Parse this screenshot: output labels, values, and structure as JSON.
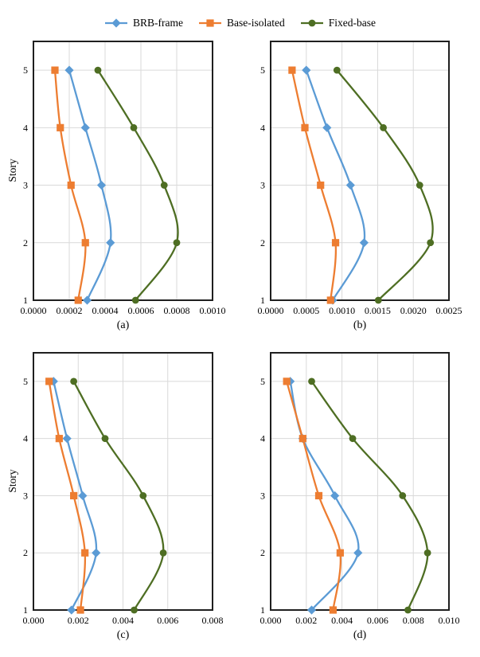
{
  "colors": {
    "brb_frame": "#5B9BD5",
    "base_isolated": "#ED7D31",
    "fixed_base": "#4E6E23",
    "grid": "#D9D9D9",
    "axis": "#1F1F1F",
    "background": "#FFFFFF"
  },
  "legend": {
    "items": [
      {
        "label": "BRB-frame",
        "marker": "diamond",
        "color": "#5B9BD5"
      },
      {
        "label": "Base-isolated",
        "marker": "square",
        "color": "#ED7D31"
      },
      {
        "label": "Fixed-base",
        "marker": "circle",
        "color": "#4E6E23"
      }
    ]
  },
  "chart_data": [
    {
      "id": "a",
      "type": "line",
      "caption": "(a)",
      "ylabel": "Story",
      "yticks": [
        "1",
        "2",
        "3",
        "4",
        "5"
      ],
      "xlim": [
        0,
        0.001
      ],
      "xticks": [
        0,
        0.0002,
        0.0004,
        0.0006,
        0.0008,
        0.001
      ],
      "xtick_labels": [
        "0.0000",
        "0.0002",
        "0.0004",
        "0.0006",
        "0.0008",
        "0.0010"
      ],
      "stories": [
        1,
        2,
        3,
        4,
        5
      ],
      "series": [
        {
          "name": "BRB-frame",
          "marker": "diamond",
          "color": "#5B9BD5",
          "values": [
            0.0003,
            0.00043,
            0.00038,
            0.00029,
            0.0002
          ]
        },
        {
          "name": "Base-isolated",
          "marker": "square",
          "color": "#ED7D31",
          "values": [
            0.00025,
            0.00029,
            0.00021,
            0.00015,
            0.00012
          ]
        },
        {
          "name": "Fixed-base",
          "marker": "circle",
          "color": "#4E6E23",
          "values": [
            0.00057,
            0.0008,
            0.00073,
            0.00056,
            0.00036
          ]
        }
      ]
    },
    {
      "id": "b",
      "type": "line",
      "caption": "(b)",
      "ylabel": "",
      "yticks": [
        "1",
        "2",
        "3",
        "4",
        "5"
      ],
      "xlim": [
        0,
        0.0025
      ],
      "xticks": [
        0,
        0.0005,
        0.001,
        0.0015,
        0.002,
        0.0025
      ],
      "xtick_labels": [
        "0.0000",
        "0.0005",
        "0.0010",
        "0.0015",
        "0.0020",
        "0.0025"
      ],
      "stories": [
        1,
        2,
        3,
        4,
        5
      ],
      "series": [
        {
          "name": "BRB-frame",
          "marker": "diamond",
          "color": "#5B9BD5",
          "values": [
            0.00087,
            0.00131,
            0.00112,
            0.00079,
            0.0005
          ]
        },
        {
          "name": "Base-isolated",
          "marker": "square",
          "color": "#ED7D31",
          "values": [
            0.00084,
            0.00091,
            0.0007,
            0.00048,
            0.0003
          ]
        },
        {
          "name": "Fixed-base",
          "marker": "circle",
          "color": "#4E6E23",
          "values": [
            0.00151,
            0.00224,
            0.00209,
            0.00158,
            0.00093
          ]
        }
      ]
    },
    {
      "id": "c",
      "type": "line",
      "caption": "(c)",
      "ylabel": "Story",
      "yticks": [
        "1",
        "2",
        "3",
        "4",
        "5"
      ],
      "xlim": [
        0,
        0.008
      ],
      "xticks": [
        0,
        0.002,
        0.004,
        0.006,
        0.008
      ],
      "xtick_labels": [
        "0.000",
        "0.002",
        "0.004",
        "0.006",
        "0.008"
      ],
      "stories": [
        1,
        2,
        3,
        4,
        5
      ],
      "series": [
        {
          "name": "BRB-frame",
          "marker": "diamond",
          "color": "#5B9BD5",
          "values": [
            0.0017,
            0.0028,
            0.0022,
            0.0015,
            0.0009
          ]
        },
        {
          "name": "Base-isolated",
          "marker": "square",
          "color": "#ED7D31",
          "values": [
            0.0021,
            0.0023,
            0.0018,
            0.00115,
            0.0007
          ]
        },
        {
          "name": "Fixed-base",
          "marker": "circle",
          "color": "#4E6E23",
          "values": [
            0.0045,
            0.0058,
            0.0049,
            0.0032,
            0.0018
          ]
        }
      ]
    },
    {
      "id": "d",
      "type": "line",
      "caption": "(d)",
      "ylabel": "",
      "yticks": [
        "1",
        "2",
        "3",
        "4",
        "5"
      ],
      "xlim": [
        0,
        0.01
      ],
      "xticks": [
        0,
        0.002,
        0.004,
        0.006,
        0.008,
        0.01
      ],
      "xtick_labels": [
        "0.000",
        "0.002",
        "0.004",
        "0.006",
        "0.008",
        "0.010"
      ],
      "stories": [
        1,
        2,
        3,
        4,
        5
      ],
      "series": [
        {
          "name": "BRB-frame",
          "marker": "diamond",
          "color": "#5B9BD5",
          "values": [
            0.0023,
            0.0049,
            0.0036,
            0.0018,
            0.0011
          ]
        },
        {
          "name": "Base-isolated",
          "marker": "square",
          "color": "#ED7D31",
          "values": [
            0.0035,
            0.0039,
            0.0027,
            0.0018,
            0.0009
          ]
        },
        {
          "name": "Fixed-base",
          "marker": "circle",
          "color": "#4E6E23",
          "values": [
            0.0077,
            0.0088,
            0.0074,
            0.0046,
            0.0023
          ]
        }
      ]
    }
  ]
}
